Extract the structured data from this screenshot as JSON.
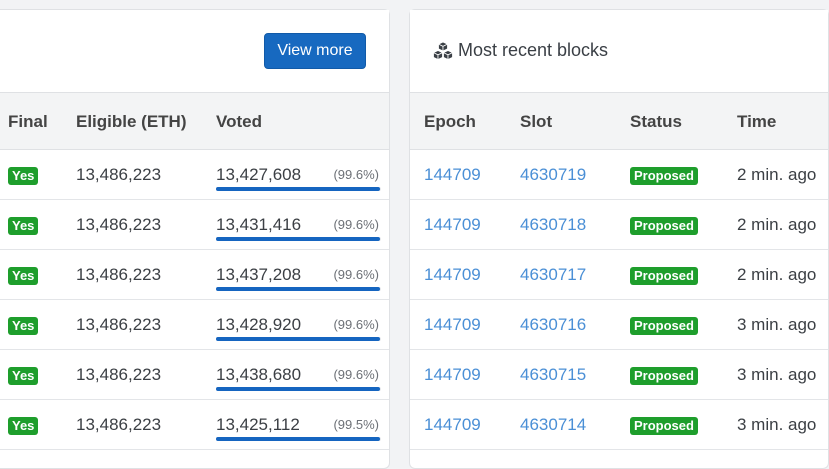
{
  "left_panel": {
    "view_more_label": "View more",
    "columns": [
      "Final",
      "Eligible (ETH)",
      "Voted"
    ],
    "rows": [
      {
        "final": "Yes",
        "eligible": "13,486,223",
        "voted": "13,427,608",
        "pct_label": "(99.6%)",
        "pct": 99.6
      },
      {
        "final": "Yes",
        "eligible": "13,486,223",
        "voted": "13,431,416",
        "pct_label": "(99.6%)",
        "pct": 99.6
      },
      {
        "final": "Yes",
        "eligible": "13,486,223",
        "voted": "13,437,208",
        "pct_label": "(99.6%)",
        "pct": 99.6
      },
      {
        "final": "Yes",
        "eligible": "13,486,223",
        "voted": "13,428,920",
        "pct_label": "(99.6%)",
        "pct": 99.6
      },
      {
        "final": "Yes",
        "eligible": "13,486,223",
        "voted": "13,438,680",
        "pct_label": "(99.6%)",
        "pct": 99.6
      },
      {
        "final": "Yes",
        "eligible": "13,486,223",
        "voted": "13,425,112",
        "pct_label": "(99.5%)",
        "pct": 99.5
      }
    ]
  },
  "right_panel": {
    "title": "Most recent blocks",
    "title_icon": "cubes-icon",
    "columns": [
      "Epoch",
      "Slot",
      "Status",
      "Time"
    ],
    "rows": [
      {
        "epoch": "144709",
        "slot": "4630719",
        "status": "Proposed",
        "time": "2 min. ago"
      },
      {
        "epoch": "144709",
        "slot": "4630718",
        "status": "Proposed",
        "time": "2 min. ago"
      },
      {
        "epoch": "144709",
        "slot": "4630717",
        "status": "Proposed",
        "time": "2 min. ago"
      },
      {
        "epoch": "144709",
        "slot": "4630716",
        "status": "Proposed",
        "time": "3 min. ago"
      },
      {
        "epoch": "144709",
        "slot": "4630715",
        "status": "Proposed",
        "time": "3 min. ago"
      },
      {
        "epoch": "144709",
        "slot": "4630714",
        "status": "Proposed",
        "time": "3 min. ago"
      }
    ]
  },
  "colors": {
    "accent": "#1769c0",
    "success_badge": "#1e9e2c",
    "link": "#4a8fd6",
    "vote_bar": "#1565c0"
  }
}
